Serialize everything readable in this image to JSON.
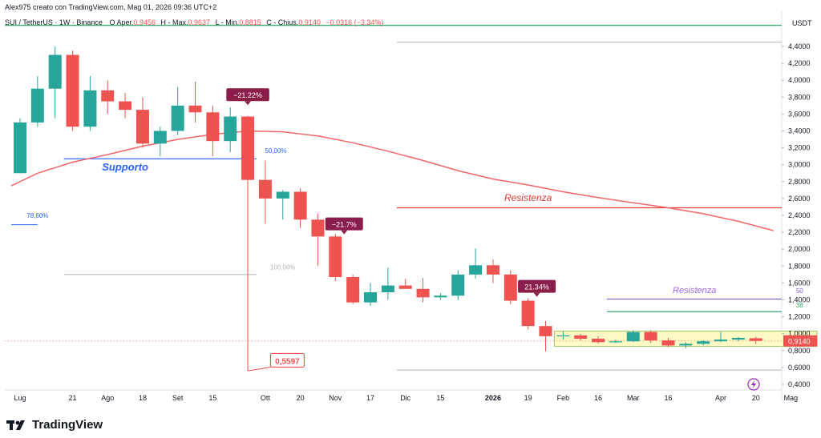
{
  "header": {
    "creator_line": "Alex975 creato con TradingView.com, Mag 01, 2026 09:36 UTC+2",
    "symbol_line": "SUI / TetherUS · 1W · Binance",
    "ohlc_parts": [
      {
        "label": "O",
        "text": "Aper.",
        "value": "0,9456"
      },
      {
        "label": "H",
        "text": "Max.",
        "value": "0,9637"
      },
      {
        "label": "L",
        "text": "Min.",
        "value": "0,8815"
      },
      {
        "label": "C",
        "text": "Chius.",
        "value": "0,9140"
      }
    ],
    "change": "−0,0316 (−3,34%)"
  },
  "brand": {
    "name": "TradingView"
  },
  "colors": {
    "up": "#26a69a",
    "down": "#ef5350",
    "ma": "#f2666a",
    "support": "#2962ff",
    "resistance": "#e53935",
    "resistance_fib": "#9c6ade",
    "green_line": "#3aa76d",
    "range_box": "#fff9c4",
    "label_dark": "#8b1d4a"
  },
  "chart_data": {
    "type": "candlestick",
    "symbol": "SUI / TetherUS",
    "timeframe": "1W",
    "exchange": "Binance",
    "y_unit": "USDT",
    "y_range": [
      0.35,
      4.65
    ],
    "y_ticks": [
      "4,4000",
      "4,2000",
      "4,0000",
      "3,8000",
      "3,6000",
      "3,4000",
      "3,2000",
      "3,0000",
      "2,8000",
      "2,6000",
      "2,4000",
      "2,2000",
      "2,0000",
      "1,8000",
      "1,6000",
      "1,4000",
      "1,2000",
      "1,0000",
      "0,8000",
      "0,6000",
      "0,4000"
    ],
    "x_ticks": [
      {
        "i": 0,
        "label": "Lug"
      },
      {
        "i": 3,
        "label": "21"
      },
      {
        "i": 5,
        "label": "Ago"
      },
      {
        "i": 7,
        "label": "18"
      },
      {
        "i": 9,
        "label": "Set"
      },
      {
        "i": 11,
        "label": "15"
      },
      {
        "i": 14,
        "label": "Ott"
      },
      {
        "i": 16,
        "label": "20"
      },
      {
        "i": 18,
        "label": "Nov"
      },
      {
        "i": 20,
        "label": "17"
      },
      {
        "i": 22,
        "label": "Dic"
      },
      {
        "i": 24,
        "label": "15"
      },
      {
        "i": 27,
        "label": "2026",
        "bold": true
      },
      {
        "i": 29,
        "label": "19"
      },
      {
        "i": 31,
        "label": "Feb"
      },
      {
        "i": 33,
        "label": "16"
      },
      {
        "i": 35,
        "label": "Mar"
      },
      {
        "i": 37,
        "label": "16"
      },
      {
        "i": 40,
        "label": "Apr"
      },
      {
        "i": 42,
        "label": "20"
      },
      {
        "i": 44,
        "label": "Mag"
      }
    ],
    "candles": [
      {
        "o": 2.9,
        "h": 3.55,
        "l": 2.9,
        "c": 3.5
      },
      {
        "o": 3.5,
        "h": 4.05,
        "l": 3.45,
        "c": 3.9
      },
      {
        "o": 3.9,
        "h": 4.4,
        "l": 3.55,
        "c": 4.3
      },
      {
        "o": 4.3,
        "h": 4.35,
        "l": 3.4,
        "c": 3.45
      },
      {
        "o": 3.45,
        "h": 4.05,
        "l": 3.4,
        "c": 3.88
      },
      {
        "o": 3.88,
        "h": 4.0,
        "l": 3.6,
        "c": 3.75
      },
      {
        "o": 3.75,
        "h": 3.85,
        "l": 3.55,
        "c": 3.65
      },
      {
        "o": 3.65,
        "h": 3.8,
        "l": 3.2,
        "c": 3.25
      },
      {
        "o": 3.25,
        "h": 3.45,
        "l": 3.1,
        "c": 3.4
      },
      {
        "o": 3.4,
        "h": 3.92,
        "l": 3.35,
        "c": 3.7
      },
      {
        "o": 3.7,
        "h": 3.98,
        "l": 3.5,
        "c": 3.62
      },
      {
        "o": 3.62,
        "h": 3.7,
        "l": 3.1,
        "c": 3.28
      },
      {
        "o": 3.28,
        "h": 3.68,
        "l": 3.15,
        "c": 3.57
      },
      {
        "o": 3.57,
        "h": 3.58,
        "l": 0.5597,
        "c": 2.82
      },
      {
        "o": 2.82,
        "h": 3.05,
        "l": 2.3,
        "c": 2.6
      },
      {
        "o": 2.6,
        "h": 2.7,
        "l": 2.35,
        "c": 2.68
      },
      {
        "o": 2.68,
        "h": 2.72,
        "l": 2.25,
        "c": 2.35
      },
      {
        "o": 2.35,
        "h": 2.42,
        "l": 1.8,
        "c": 2.15
      },
      {
        "o": 2.15,
        "h": 2.18,
        "l": 1.62,
        "c": 1.67
      },
      {
        "o": 1.67,
        "h": 1.7,
        "l": 1.35,
        "c": 1.37
      },
      {
        "o": 1.37,
        "h": 1.6,
        "l": 1.33,
        "c": 1.49
      },
      {
        "o": 1.49,
        "h": 1.78,
        "l": 1.4,
        "c": 1.57
      },
      {
        "o": 1.57,
        "h": 1.65,
        "l": 1.53,
        "c": 1.53
      },
      {
        "o": 1.53,
        "h": 1.66,
        "l": 1.37,
        "c": 1.43
      },
      {
        "o": 1.43,
        "h": 1.48,
        "l": 1.4,
        "c": 1.45
      },
      {
        "o": 1.45,
        "h": 1.75,
        "l": 1.4,
        "c": 1.7
      },
      {
        "o": 1.7,
        "h": 2.01,
        "l": 1.65,
        "c": 1.81
      },
      {
        "o": 1.81,
        "h": 1.88,
        "l": 1.6,
        "c": 1.7
      },
      {
        "o": 1.7,
        "h": 1.75,
        "l": 1.35,
        "c": 1.39
      },
      {
        "o": 1.39,
        "h": 1.42,
        "l": 1.05,
        "c": 1.09
      },
      {
        "o": 1.09,
        "h": 1.15,
        "l": 0.79,
        "c": 0.97
      },
      {
        "o": 0.97,
        "h": 1.03,
        "l": 0.93,
        "c": 0.98
      },
      {
        "o": 0.98,
        "h": 1.0,
        "l": 0.92,
        "c": 0.94
      },
      {
        "o": 0.94,
        "h": 0.97,
        "l": 0.88,
        "c": 0.9
      },
      {
        "o": 0.9,
        "h": 0.93,
        "l": 0.89,
        "c": 0.91
      },
      {
        "o": 0.91,
        "h": 1.04,
        "l": 0.9,
        "c": 1.02
      },
      {
        "o": 1.02,
        "h": 1.04,
        "l": 0.89,
        "c": 0.92
      },
      {
        "o": 0.92,
        "h": 0.95,
        "l": 0.84,
        "c": 0.86
      },
      {
        "o": 0.86,
        "h": 0.9,
        "l": 0.83,
        "c": 0.88
      },
      {
        "o": 0.88,
        "h": 0.92,
        "l": 0.86,
        "c": 0.91
      },
      {
        "o": 0.91,
        "h": 1.02,
        "l": 0.9,
        "c": 0.93
      },
      {
        "o": 0.93,
        "h": 0.96,
        "l": 0.91,
        "c": 0.95
      },
      {
        "o": 0.9456,
        "h": 0.9637,
        "l": 0.8815,
        "c": 0.914
      }
    ],
    "moving_average": [
      {
        "i": -0.5,
        "v": 2.75
      },
      {
        "i": 1,
        "v": 2.9
      },
      {
        "i": 3,
        "v": 3.03
      },
      {
        "i": 5,
        "v": 3.12
      },
      {
        "i": 7,
        "v": 3.22
      },
      {
        "i": 9,
        "v": 3.3
      },
      {
        "i": 11,
        "v": 3.36
      },
      {
        "i": 13,
        "v": 3.4
      },
      {
        "i": 15,
        "v": 3.39
      },
      {
        "i": 17,
        "v": 3.34
      },
      {
        "i": 19,
        "v": 3.26
      },
      {
        "i": 21,
        "v": 3.16
      },
      {
        "i": 23,
        "v": 3.05
      },
      {
        "i": 25,
        "v": 2.93
      },
      {
        "i": 27,
        "v": 2.83
      },
      {
        "i": 29,
        "v": 2.76
      },
      {
        "i": 31,
        "v": 2.68
      },
      {
        "i": 33,
        "v": 2.61
      },
      {
        "i": 35,
        "v": 2.55
      },
      {
        "i": 37,
        "v": 2.49
      },
      {
        "i": 39,
        "v": 2.42
      },
      {
        "i": 41,
        "v": 2.33
      },
      {
        "i": 43,
        "v": 2.22
      }
    ],
    "horizontal_levels": [
      {
        "name": "top-green",
        "value": 4.65,
        "i0": -1,
        "i1": 45.5,
        "color": "#3aa76d",
        "width": 1.2
      },
      {
        "name": "grey-top",
        "value": 4.45,
        "i0": 21.5,
        "i1": 45.5,
        "color": "#b2b5be",
        "width": 1
      },
      {
        "name": "supporto",
        "value": 3.07,
        "i0": 2.5,
        "i1": 13.5,
        "color": "#2962ff",
        "width": 1.2
      },
      {
        "name": "resistenza",
        "value": 2.49,
        "i0": 21.5,
        "i1": 45.5,
        "color": "#e53935",
        "width": 1.2
      },
      {
        "name": "fib-78",
        "value": 2.29,
        "i0": -0.5,
        "i1": 1.0,
        "color": "#2962ff",
        "width": 1
      },
      {
        "name": "fib-100",
        "value": 1.7,
        "i0": 2.5,
        "i1": 13.5,
        "color": "#b2b5be",
        "width": 1
      },
      {
        "name": "fib-50",
        "value": 1.41,
        "i0": 33.5,
        "i1": 44.3,
        "color": "#7e57c2",
        "width": 1.2
      },
      {
        "name": "fib-38",
        "value": 1.26,
        "i0": 33.5,
        "i1": 44.3,
        "color": "#3aa76d",
        "width": 1.2
      },
      {
        "name": "grey-bottom",
        "value": 0.57,
        "i0": 21.5,
        "i1": 45.5,
        "color": "#b2b5be",
        "width": 1
      }
    ],
    "range_box": {
      "i0": 30.5,
      "i1": 45.5,
      "top": 1.03,
      "bottom": 0.85
    },
    "price_dotted": 0.914,
    "text_labels": [
      {
        "text": "Supporto",
        "i": 6,
        "v": 2.93,
        "color": "#2962ff",
        "size": 13,
        "italic": true,
        "bold": true
      },
      {
        "text": "Resistenza",
        "i": 29,
        "v": 2.57,
        "color": "#e53935",
        "size": 12,
        "italic": true
      },
      {
        "text": "Resistenza",
        "i": 38.5,
        "v": 1.48,
        "color": "#9c6ade",
        "size": 11,
        "italic": true
      },
      {
        "text": "78,60%",
        "i": 1.0,
        "v": 2.37,
        "color": "#2962ff",
        "size": 8
      },
      {
        "text": "50,00%",
        "i": 14.6,
        "v": 3.14,
        "color": "#2962ff",
        "size": 8
      },
      {
        "text": "100,00%",
        "i": 15.0,
        "v": 1.76,
        "color": "#b2b5be",
        "size": 8
      },
      {
        "text": "50",
        "i": 44.5,
        "v": 1.48,
        "color": "#7e57c2",
        "size": 8
      },
      {
        "text": "38",
        "i": 44.5,
        "v": 1.31,
        "color": "#3aa76d",
        "size": 8
      }
    ],
    "callouts": [
      {
        "text": "−21.22%",
        "i": 13,
        "v": 3.82
      },
      {
        "text": "−21.7%",
        "i": 18.5,
        "v": 2.29
      },
      {
        "text": "21.34%",
        "i": 29.5,
        "v": 1.55
      }
    ],
    "price_marker": {
      "text": "0,5597",
      "i": 14.3,
      "v": 0.68
    },
    "last_price": "0,9140"
  }
}
